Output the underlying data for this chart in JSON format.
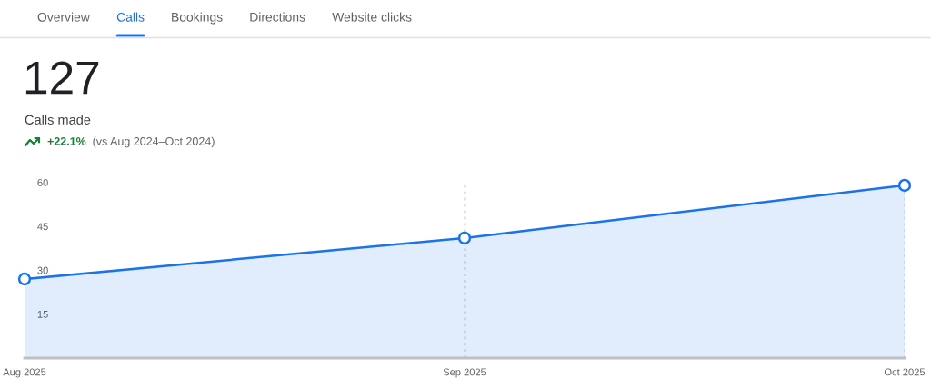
{
  "chart_data": {
    "type": "area",
    "title": "127",
    "subtitle": "Calls made",
    "annotations": [
      "Overview",
      "Calls",
      "Bookings",
      "Directions",
      "Website clicks",
      "+22.1%",
      "(vs Aug 2024–Oct 2024)"
    ],
    "categories": [
      "Aug 2025",
      "Sep 2025",
      "Oct 2025"
    ],
    "series": [
      {
        "color": "#1a73e8",
        "values": [
          27,
          41,
          59
        ]
      }
    ],
    "ylim": [
      0,
      60
    ],
    "yticks": [
      15,
      30,
      45,
      60
    ],
    "grid": "x",
    "marker": "circle"
  }
}
